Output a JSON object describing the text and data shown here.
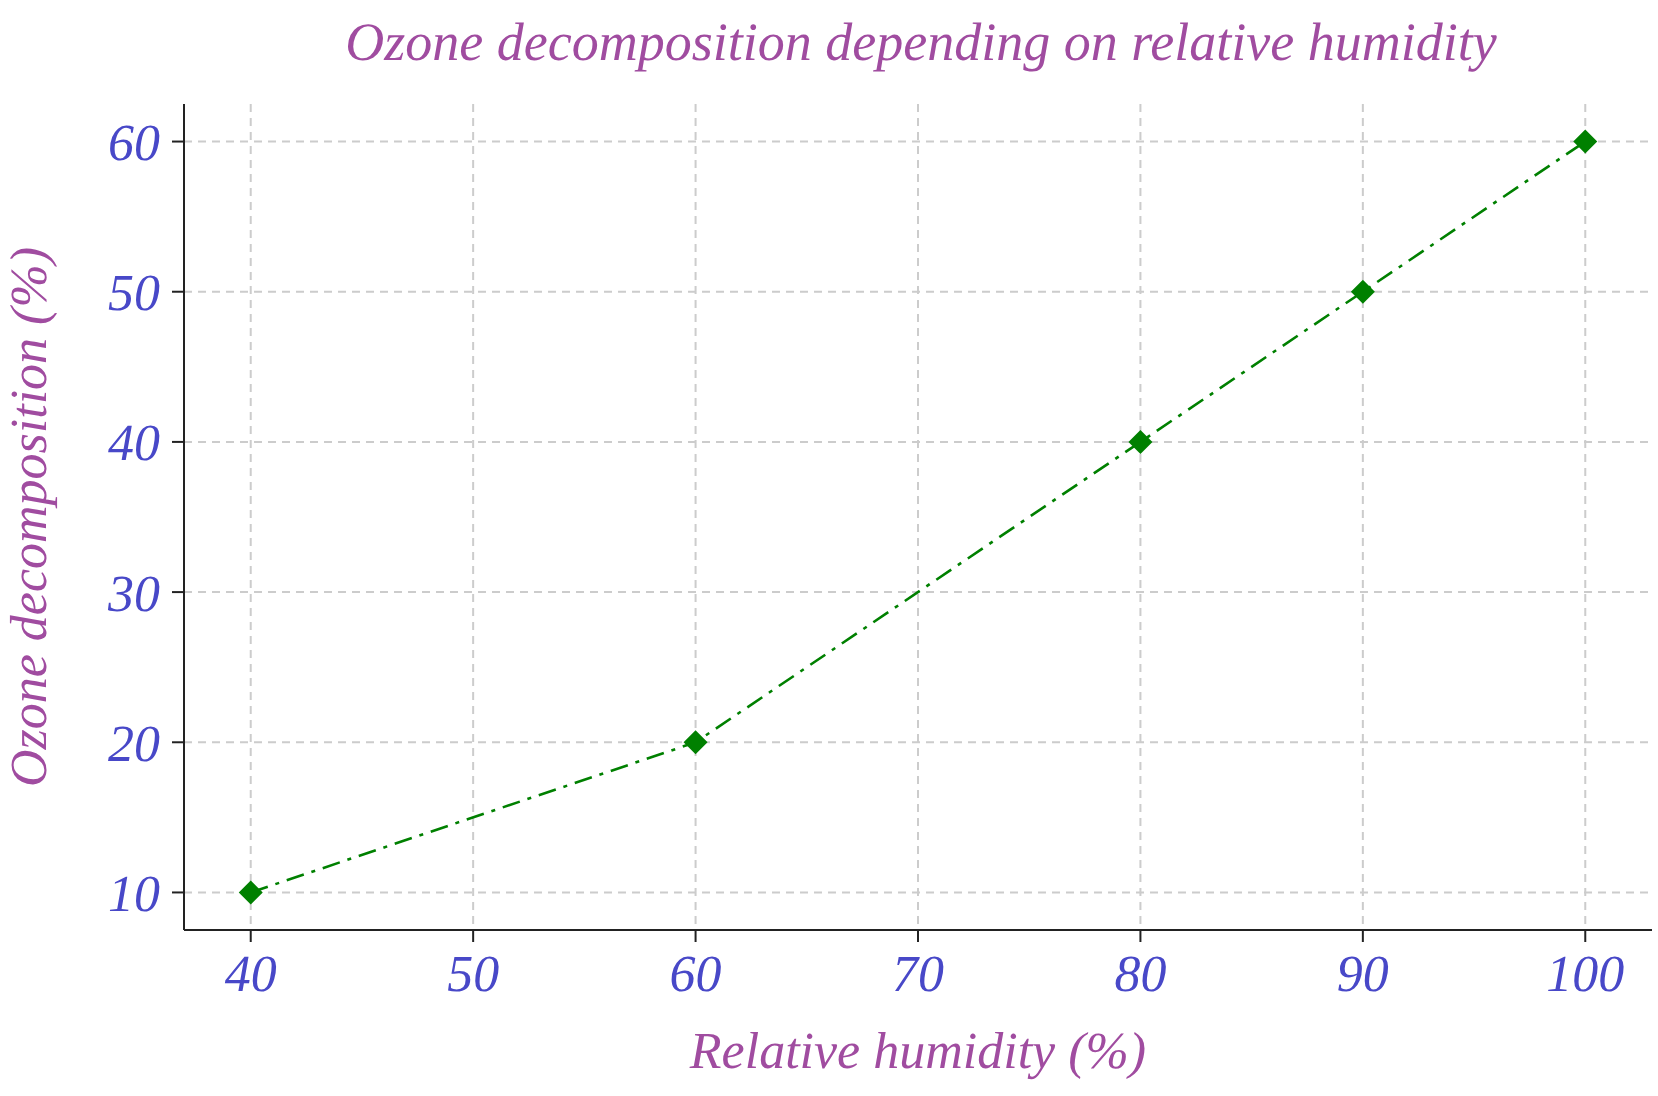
{
  "chart_data": {
    "type": "line",
    "title": "Ozone decomposition depending on relative humidity",
    "xlabel": "Relative humidity (%)",
    "ylabel": "Ozone decomposition (%)",
    "x": [
      40,
      60,
      80,
      90,
      100
    ],
    "series": [
      {
        "color": "#008000",
        "values": [
          10,
          20,
          40,
          50,
          60
        ]
      }
    ],
    "xlim": [
      37,
      103
    ],
    "xticks": [
      40,
      50,
      60,
      70,
      80,
      90,
      100
    ],
    "ylim": [
      7.5,
      62.5
    ],
    "yticks": [
      10,
      20,
      30,
      40,
      50,
      60
    ],
    "grid": true,
    "marker": "diamond",
    "line_style": "dashed"
  }
}
